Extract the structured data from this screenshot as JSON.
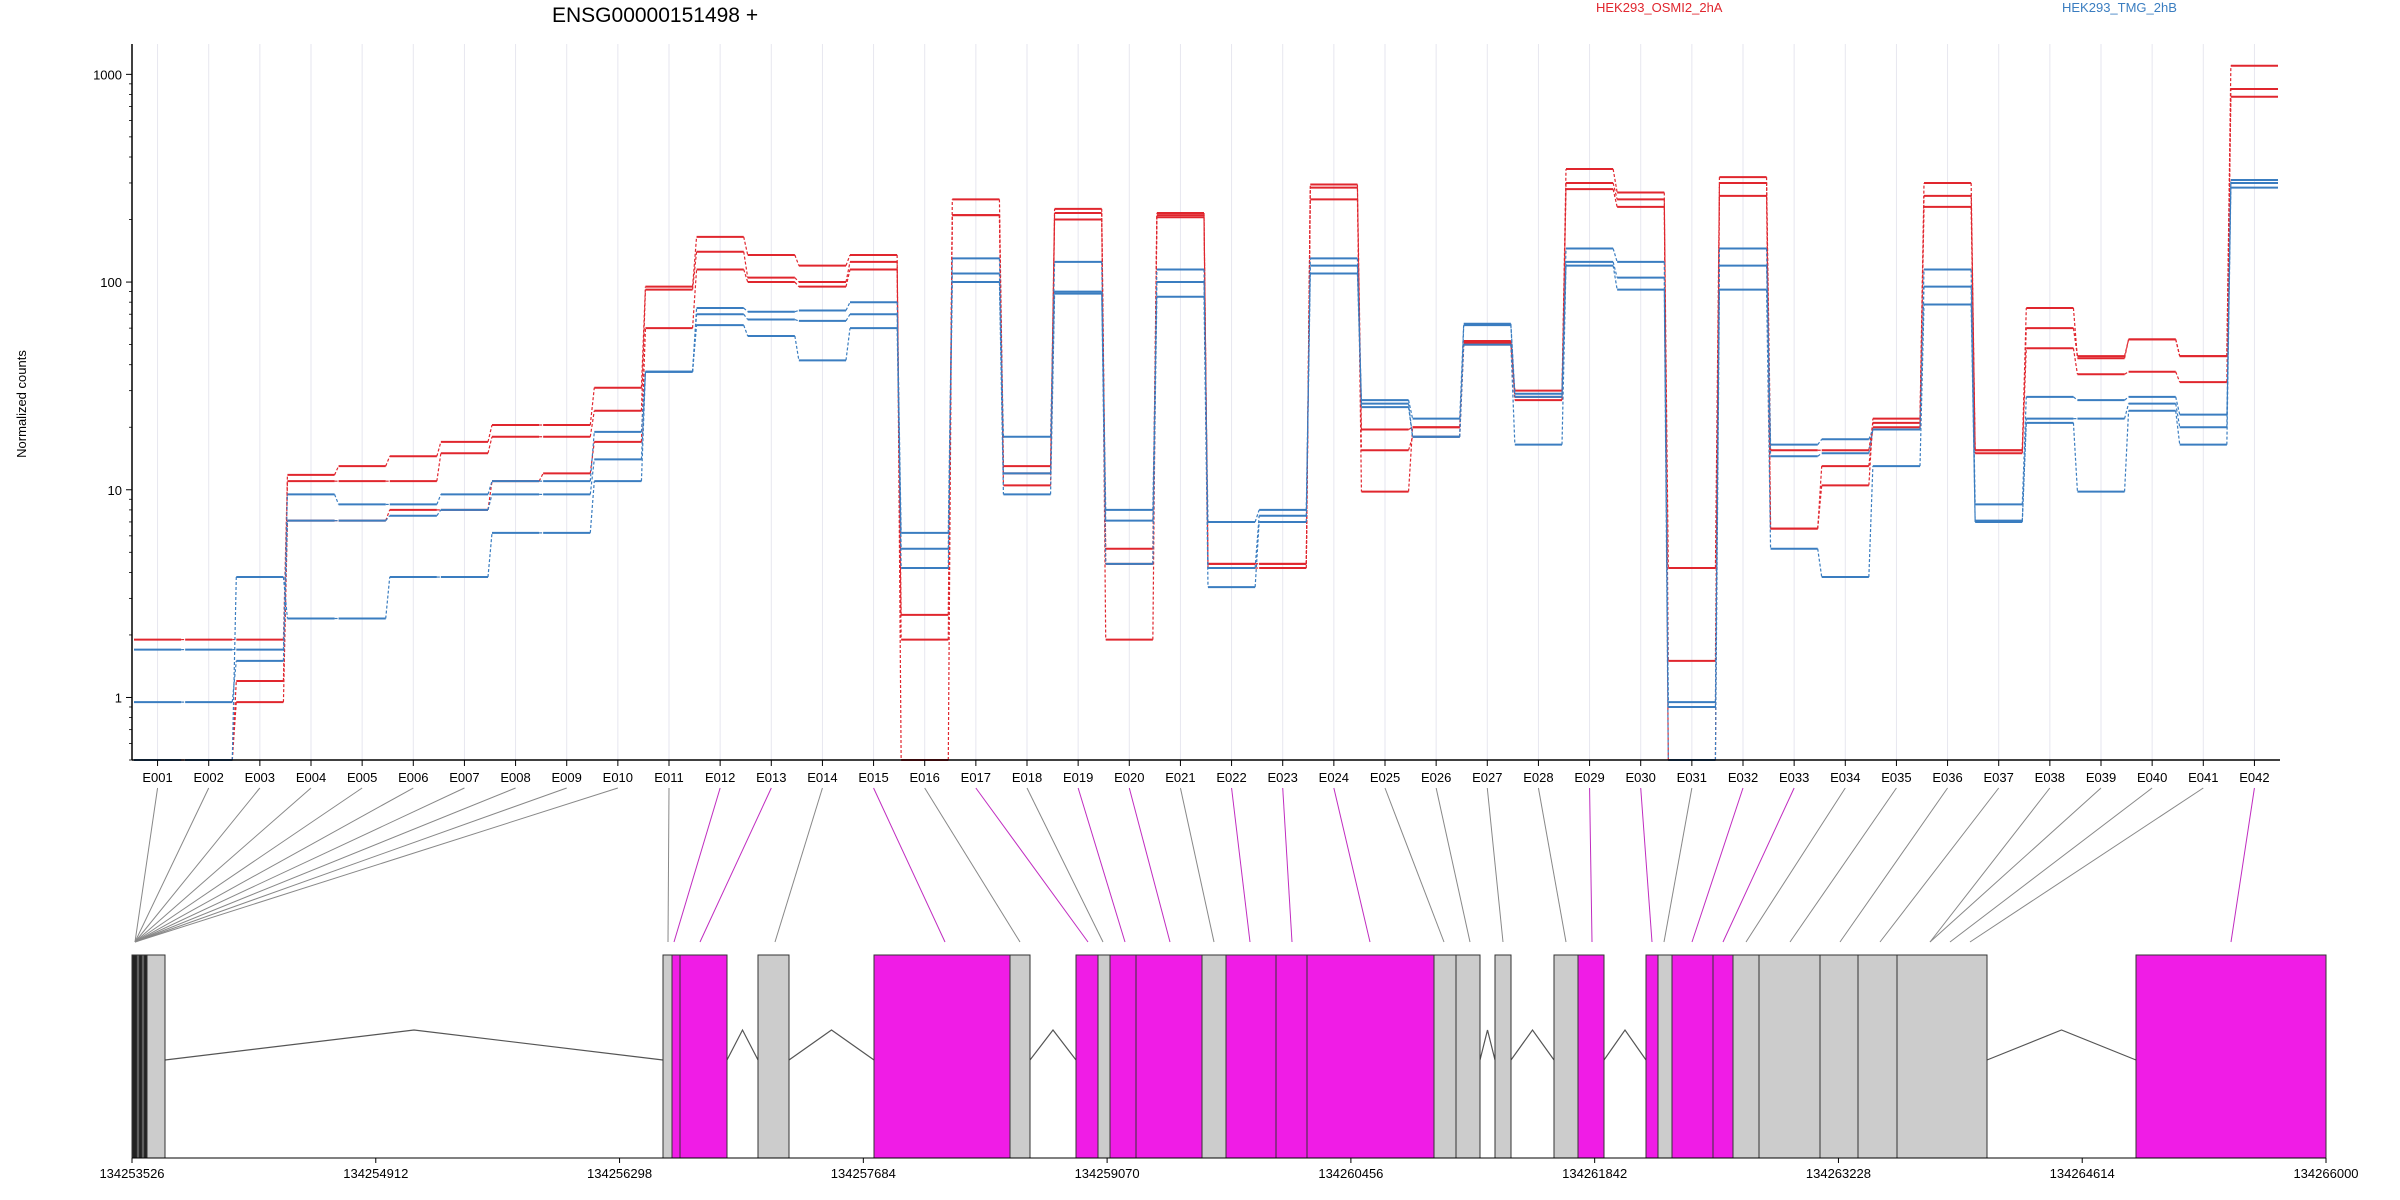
{
  "chart_data": {
    "type": "line",
    "title": "ENSG00000151498 +",
    "ylabel": "Normalized counts",
    "y_scale": "log",
    "ylim": [
      0.5,
      1400
    ],
    "y_ticks": [
      1,
      10,
      100,
      1000
    ],
    "y_tick_labels": [
      "1",
      "10",
      "100",
      "1000"
    ],
    "legend_position": "top",
    "categories": [
      "E001",
      "E002",
      "E003",
      "E004",
      "E005",
      "E006",
      "E007",
      "E008",
      "E009",
      "E010",
      "E011",
      "E012",
      "E013",
      "E014",
      "E015",
      "E016",
      "E017",
      "E018",
      "E019",
      "E020",
      "E021",
      "E022",
      "E023",
      "E024",
      "E025",
      "E026",
      "E027",
      "E028",
      "E029",
      "E030",
      "E031",
      "E032",
      "E033",
      "E034",
      "E035",
      "E036",
      "E037",
      "E038",
      "E039",
      "E040",
      "E041",
      "E042"
    ],
    "groups": [
      {
        "name": "HEK293_OSMI2_2hA",
        "color": "#e0262e"
      },
      {
        "name": "HEK293_TMG_2hB",
        "color": "#3a7dc0"
      }
    ],
    "series": [
      {
        "group": 0,
        "values": [
          1.9,
          1.9,
          1.9,
          11.8,
          13,
          14.5,
          17,
          20.5,
          20.5,
          31,
          95,
          165,
          135,
          120,
          135,
          0.5,
          250,
          13,
          225,
          5.2,
          215,
          4.4,
          4.4,
          295,
          9.8,
          20,
          51,
          30,
          350,
          270,
          0.5,
          320,
          6.5,
          10.5,
          22,
          300,
          15.5,
          75,
          43,
          53,
          44,
          1100
        ]
      },
      {
        "group": 0,
        "values": [
          0.5,
          0.5,
          1.2,
          11,
          11,
          11,
          15,
          18,
          18,
          24,
          92,
          140,
          105,
          100,
          125,
          2.5,
          210,
          12,
          215,
          4.4,
          210,
          4.2,
          4.2,
          285,
          19.5,
          20,
          52,
          28,
          300,
          250,
          4.2,
          300,
          15.5,
          15.5,
          21,
          260,
          15.5,
          60,
          44,
          53,
          44,
          850
        ]
      },
      {
        "group": 0,
        "values": [
          0.5,
          0.5,
          0.95,
          7.1,
          7.1,
          8,
          8,
          11,
          12,
          17,
          60,
          115,
          100,
          95,
          115,
          1.9,
          210,
          10.5,
          200,
          1.9,
          205,
          4.4,
          4.4,
          250,
          15.5,
          18,
          50,
          27,
          280,
          230,
          1.5,
          260,
          6.5,
          13,
          20,
          230,
          15,
          48,
          36,
          37,
          33,
          780
        ]
      },
      {
        "group": 1,
        "values": [
          1.7,
          1.7,
          1.7,
          9.5,
          8.5,
          8.5,
          9.5,
          11,
          11,
          19,
          37,
          75,
          72,
          73,
          80,
          6.2,
          130,
          18,
          125,
          8,
          115,
          7,
          8,
          130,
          27,
          22,
          63,
          29,
          145,
          125,
          0.95,
          145,
          16.5,
          17.5,
          19.5,
          115,
          8.5,
          28,
          27,
          28,
          23,
          310
        ]
      },
      {
        "group": 1,
        "values": [
          0.95,
          0.95,
          1.5,
          7.1,
          7.1,
          7.5,
          8,
          9.5,
          9.5,
          14,
          37,
          70,
          66,
          65,
          70,
          5.2,
          110,
          12,
          90,
          7.1,
          100,
          4.2,
          7.5,
          120,
          26,
          18,
          62,
          28,
          125,
          105,
          0.9,
          120,
          14.5,
          15,
          19.5,
          95,
          7.1,
          22,
          22,
          26,
          20,
          300
        ]
      },
      {
        "group": 1,
        "values": [
          0.5,
          0.5,
          3.8,
          2.4,
          2.4,
          3.8,
          3.8,
          6.2,
          6.2,
          11,
          37,
          62,
          55,
          42,
          60,
          4.2,
          100,
          9.5,
          88,
          4.4,
          85,
          3.4,
          7,
          110,
          25,
          18,
          50,
          16.5,
          120,
          92,
          0.5,
          92,
          5.2,
          3.8,
          13,
          78,
          7,
          21,
          9.8,
          24,
          16.5,
          285
        ]
      }
    ],
    "gene_model": {
      "coordinate_ticks": [
        "134253526",
        "134254912",
        "134256298",
        "134257684",
        "134259070",
        "134260456",
        "134261842",
        "134263228",
        "134264614",
        "134266000"
      ],
      "exon_colors": {
        "tested": "#cccccc",
        "significant": "#f01ce6"
      }
    }
  }
}
